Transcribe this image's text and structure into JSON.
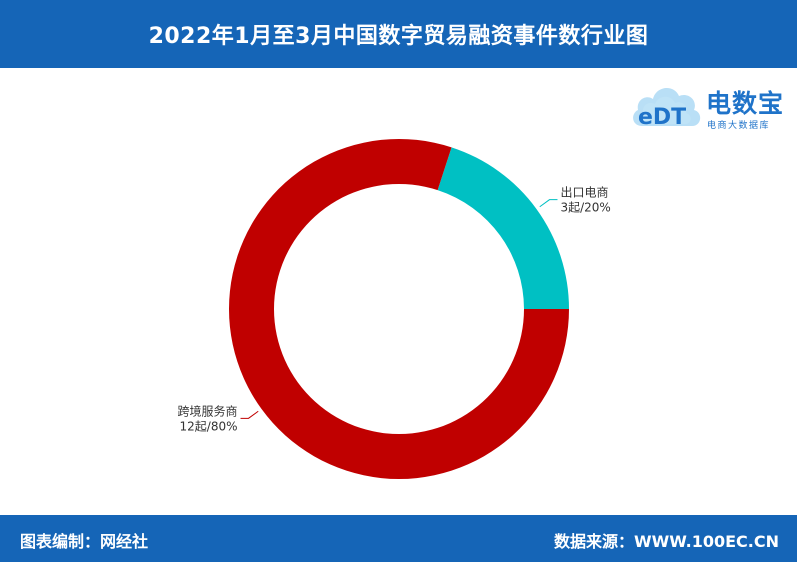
{
  "header": {
    "title": "2022年1月至3月中国数字贸易融资事件数行业图"
  },
  "logo": {
    "name": "电数宝",
    "subtitle": "电商大数据库",
    "mark": "eDT"
  },
  "footer": {
    "editor_label": "图表编制：",
    "editor_name": "网经社",
    "source_label": "数据来源：",
    "source_url": "WWW.100EC.CN"
  },
  "colors": {
    "bar": "#1565b7",
    "slice_1": "#c00000",
    "slice_2": "#00c0c3"
  },
  "chart_data": {
    "type": "pie",
    "variant": "donut",
    "title": "",
    "slices": [
      {
        "name": "跨境服务商",
        "value": 12,
        "unit": "起",
        "percent": 80,
        "label_line1": "跨境服务商",
        "label_line2": "12起/80%",
        "color": "#c00000"
      },
      {
        "name": "出口电商",
        "value": 3,
        "unit": "起",
        "percent": 20,
        "label_line1": "出口电商",
        "label_line2": "3起/20%",
        "color": "#00c0c3"
      }
    ]
  }
}
